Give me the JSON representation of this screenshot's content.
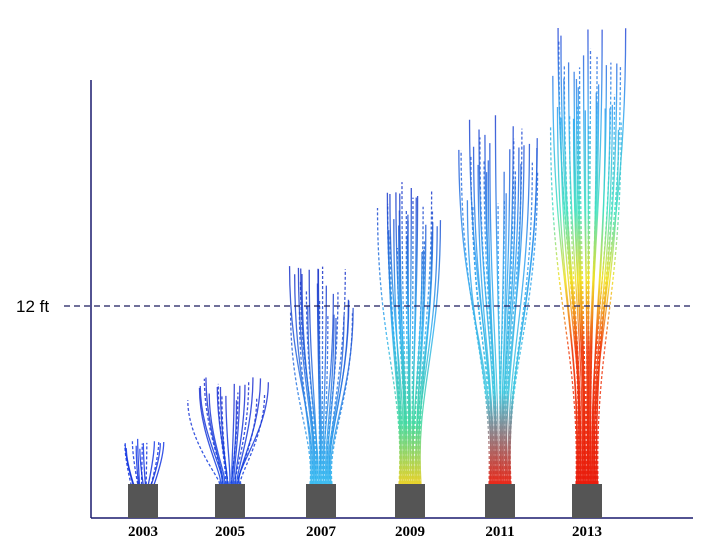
{
  "reference_line": {
    "label": "12 ft"
  },
  "years": [
    "2003",
    "2005",
    "2007",
    "2009",
    "2011",
    "2013"
  ]
}
